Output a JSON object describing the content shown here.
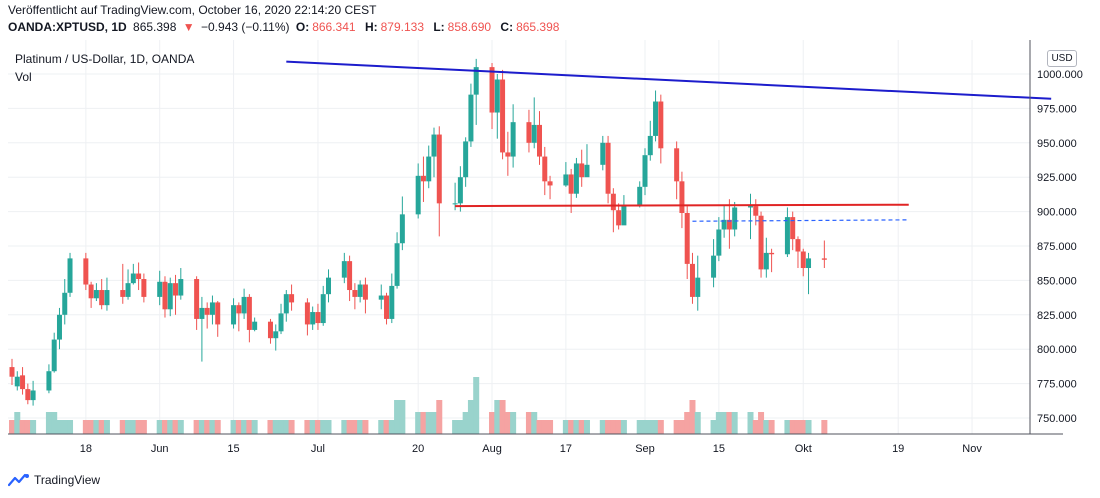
{
  "header": {
    "published": "Veröffentlicht auf TradingView.com, October 16, 2020 22:14:20 CEST",
    "symbol": "OANDA:XPTUSD, 1D",
    "last": "865.398",
    "change": "−0.943 (−0.11%)",
    "o_label": "O:",
    "o_value": "866.341",
    "h_label": "H:",
    "h_value": "879.133",
    "l_label": "L:",
    "l_value": "858.690",
    "c_label": "C:",
    "c_value": "865.398"
  },
  "legend": {
    "title": "Platinum / US-Dollar, 1D, OANDA",
    "volume": "Vol"
  },
  "currency_button": "USD",
  "footer": {
    "brand": "TradingView",
    "logo_icon": "tradingview-logo-icon"
  },
  "colors": {
    "up": "#26a69a",
    "down": "#ef5350",
    "vol_up": "#99d3cc",
    "vol_down": "#f5a3a2",
    "trendline": "#1c1ccc",
    "resistance": "#e02424",
    "dashed": "#2962ff",
    "grid": "#eef0f3"
  },
  "chart_data": {
    "type": "candlestick",
    "ylim": [
      740,
      1013
    ],
    "y_ticks": [
      "1000.000",
      "975.000",
      "950.000",
      "925.000",
      "900.000",
      "875.000",
      "850.000",
      "825.000",
      "800.000",
      "775.000",
      "750.000"
    ],
    "x_ticks": [
      {
        "label": "18",
        "date": "2020-05-18"
      },
      {
        "label": "Jun",
        "date": "2020-06-01"
      },
      {
        "label": "15",
        "date": "2020-06-15"
      },
      {
        "label": "Jul",
        "date": "2020-07-01"
      },
      {
        "label": "20",
        "date": "2020-07-20"
      },
      {
        "label": "Aug",
        "date": "2020-08-03"
      },
      {
        "label": "17",
        "date": "2020-08-17"
      },
      {
        "label": "Sep",
        "date": "2020-09-01"
      },
      {
        "label": "15",
        "date": "2020-09-15"
      },
      {
        "label": "Okt",
        "date": "2020-10-01"
      },
      {
        "label": "19",
        "date": "2020-10-19"
      },
      {
        "label": "Nov",
        "date": "2020-11-02"
      }
    ],
    "start_date": "2020-05-04",
    "candles": [
      [
        787,
        780,
        793,
        774,
        1
      ],
      [
        773,
        780,
        784,
        770,
        2
      ],
      [
        781,
        771,
        787,
        767,
        1
      ],
      [
        771,
        763,
        775,
        760,
        1
      ],
      [
        763,
        770,
        777,
        759,
        1
      ],
      [
        770,
        784,
        789,
        768,
        2
      ],
      [
        784,
        807,
        812,
        783,
        2
      ],
      [
        807,
        825,
        830,
        800,
        1
      ],
      [
        825,
        841,
        851,
        818,
        1
      ],
      [
        841,
        866,
        870,
        838,
        1
      ],
      [
        866,
        847,
        870,
        843,
        1
      ],
      [
        847,
        837,
        849,
        830,
        1
      ],
      [
        837,
        843,
        848,
        835,
        1
      ],
      [
        843,
        832,
        851,
        829,
        1
      ],
      [
        832,
        843,
        852,
        828,
        1
      ],
      [
        843,
        838,
        862,
        833,
        1
      ],
      [
        838,
        848,
        858,
        836,
        1
      ],
      [
        848,
        855,
        862,
        847,
        1
      ],
      [
        855,
        851,
        863,
        843,
        1
      ],
      [
        851,
        838,
        855,
        834,
        1
      ],
      [
        838,
        849,
        857,
        832,
        1
      ],
      [
        849,
        829,
        853,
        823,
        1
      ],
      [
        829,
        848,
        852,
        824,
        1
      ],
      [
        848,
        839,
        854,
        825,
        1
      ],
      [
        839,
        851,
        859,
        836,
        1
      ],
      [
        851,
        822,
        853,
        814,
        1
      ],
      [
        822,
        830,
        838,
        791,
        1
      ],
      [
        830,
        825,
        834,
        815,
        1
      ],
      [
        825,
        834,
        839,
        818,
        1
      ],
      [
        834,
        818,
        835,
        809,
        1
      ],
      [
        818,
        832,
        837,
        815,
        1
      ],
      [
        832,
        826,
        834,
        813,
        1
      ],
      [
        826,
        838,
        844,
        822,
        1
      ],
      [
        838,
        814,
        840,
        805,
        1
      ],
      [
        814,
        820,
        823,
        813,
        1
      ],
      [
        820,
        808,
        822,
        804,
        1
      ],
      [
        808,
        813,
        818,
        799,
        1
      ],
      [
        813,
        826,
        833,
        811,
        1
      ],
      [
        826,
        840,
        843,
        820,
        1
      ],
      [
        840,
        834,
        847,
        828,
        1
      ],
      [
        834,
        818,
        837,
        810,
        1
      ],
      [
        818,
        827,
        831,
        814,
        1
      ],
      [
        827,
        819,
        833,
        814,
        1
      ],
      [
        819,
        840,
        846,
        817,
        1
      ],
      [
        840,
        852,
        858,
        834,
        1
      ],
      [
        852,
        864,
        870,
        848,
        1
      ],
      [
        864,
        843,
        868,
        835,
        1
      ],
      [
        843,
        838,
        848,
        829,
        1
      ],
      [
        838,
        847,
        850,
        834,
        1
      ],
      [
        847,
        836,
        852,
        826,
        1
      ],
      [
        836,
        839,
        847,
        829,
        1
      ],
      [
        839,
        822,
        841,
        818,
        1
      ],
      [
        822,
        846,
        855,
        819,
        1
      ],
      [
        846,
        877,
        885,
        844,
        3
      ],
      [
        877,
        898,
        911,
        872,
        3
      ],
      [
        898,
        926,
        935,
        895,
        2
      ],
      [
        926,
        922,
        940,
        907,
        2
      ],
      [
        922,
        940,
        948,
        917,
        2
      ],
      [
        940,
        956,
        961,
        925,
        2
      ],
      [
        956,
        906,
        962,
        882,
        3
      ],
      [
        906,
        906,
        921,
        901,
        1
      ],
      [
        906,
        925,
        933,
        900,
        1
      ],
      [
        925,
        951,
        954,
        918,
        2
      ],
      [
        951,
        985,
        993,
        947,
        3
      ],
      [
        985,
        1005,
        1011,
        963,
        4
      ],
      [
        1005,
        972,
        1008,
        960,
        2
      ],
      [
        972,
        996,
        1000,
        953,
        3
      ],
      [
        996,
        943,
        1003,
        938,
        3
      ],
      [
        943,
        940,
        958,
        926,
        2
      ],
      [
        940,
        965,
        978,
        932,
        2
      ],
      [
        965,
        950,
        974,
        943,
        2
      ],
      [
        950,
        963,
        983,
        946,
        2
      ],
      [
        963,
        940,
        973,
        934,
        1
      ],
      [
        940,
        922,
        947,
        912,
        1
      ],
      [
        922,
        919,
        926,
        909,
        1
      ],
      [
        919,
        927,
        936,
        918,
        1
      ],
      [
        927,
        913,
        931,
        899,
        1
      ],
      [
        913,
        935,
        939,
        910,
        1
      ],
      [
        935,
        925,
        945,
        918,
        1
      ],
      [
        925,
        934,
        949,
        926,
        1
      ],
      [
        934,
        950,
        955,
        930,
        1
      ],
      [
        950,
        913,
        955,
        906,
        1
      ],
      [
        913,
        901,
        917,
        885,
        1
      ],
      [
        901,
        890,
        906,
        887,
        1
      ],
      [
        890,
        905,
        912,
        895,
        1
      ],
      [
        905,
        918,
        922,
        903,
        1
      ],
      [
        918,
        941,
        946,
        912,
        1
      ],
      [
        941,
        955,
        966,
        937,
        1
      ],
      [
        955,
        980,
        988,
        951,
        1
      ],
      [
        980,
        946,
        985,
        935,
        1
      ],
      [
        946,
        922,
        951,
        909,
        1
      ],
      [
        922,
        899,
        929,
        888,
        1
      ],
      [
        899,
        862,
        904,
        851,
        2
      ],
      [
        862,
        838,
        870,
        833,
        3
      ],
      [
        838,
        852,
        868,
        828,
        2
      ],
      [
        852,
        868,
        880,
        845,
        1
      ],
      [
        868,
        887,
        896,
        864,
        2
      ],
      [
        887,
        894,
        905,
        881,
        2
      ],
      [
        894,
        887,
        909,
        873,
        2
      ],
      [
        887,
        903,
        907,
        882,
        2
      ],
      [
        903,
        904,
        913,
        880,
        2
      ],
      [
        904,
        897,
        909,
        890,
        1
      ],
      [
        897,
        858,
        900,
        852,
        2
      ],
      [
        858,
        870,
        881,
        852,
        1
      ],
      [
        870,
        869,
        873,
        856,
        1
      ],
      [
        869,
        896,
        903,
        867,
        1
      ],
      [
        896,
        880,
        900,
        872,
        1
      ],
      [
        880,
        871,
        882,
        859,
        1
      ],
      [
        871,
        859,
        873,
        853,
        1
      ],
      [
        859,
        866,
        870,
        840,
        1
      ],
      [
        866,
        865,
        879,
        859,
        1
      ]
    ],
    "trendline": {
      "from": [
        "2020-06-25",
        1009
      ],
      "to": [
        "2020-11-17",
        982
      ]
    },
    "resistance": {
      "from": [
        "2020-07-27",
        904
      ],
      "to": [
        "2020-10-21",
        905
      ]
    },
    "dashed_line": {
      "from": [
        "2020-09-10",
        893
      ],
      "to": [
        "2020-10-21",
        894
      ]
    }
  }
}
